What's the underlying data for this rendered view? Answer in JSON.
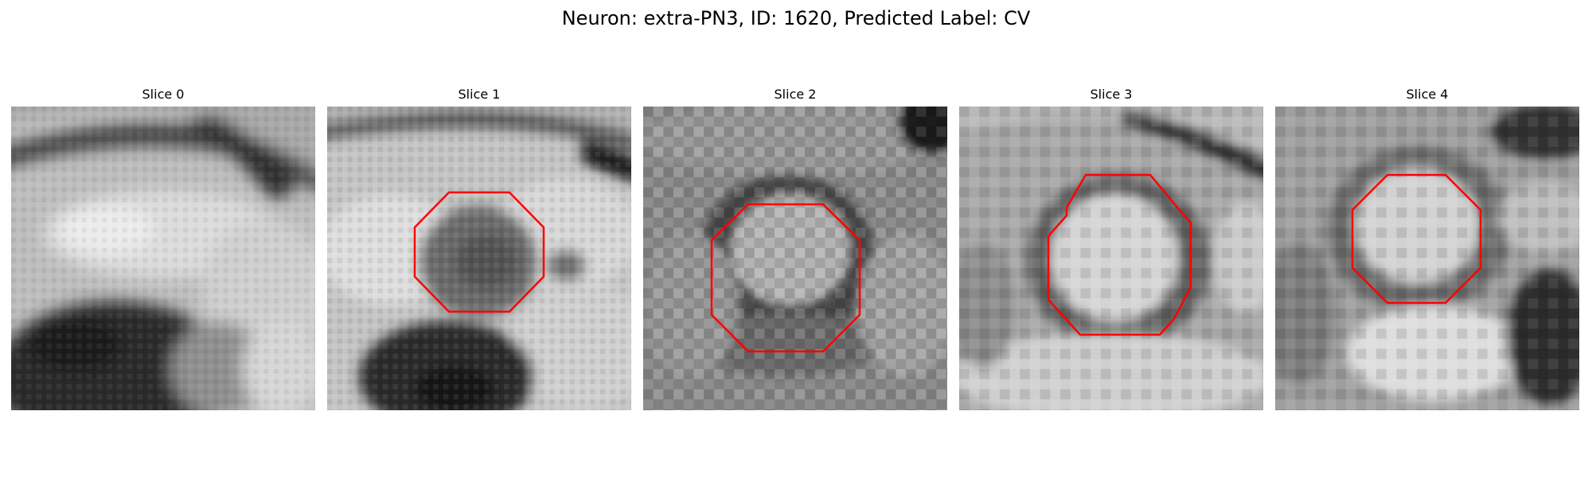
{
  "figure": {
    "title": "Neuron: extra-PN3, ID: 1620, Predicted Label: CV",
    "outline_color": "#ff0000",
    "panels": [
      {
        "title": "Slice 0",
        "has_outline": false
      },
      {
        "title": "Slice 1",
        "has_outline": true
      },
      {
        "title": "Slice 2",
        "has_outline": true
      },
      {
        "title": "Slice 3",
        "has_outline": true
      },
      {
        "title": "Slice 4",
        "has_outline": true
      }
    ]
  }
}
